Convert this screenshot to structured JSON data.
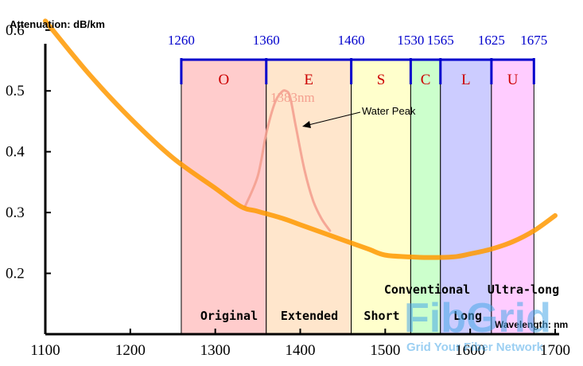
{
  "chart_data": {
    "type": "line",
    "ylabel": "Attenuation: dB/km",
    "xlabel": "Wavelength: nm",
    "xlim": [
      1100,
      1700
    ],
    "ylim": [
      0.1,
      0.62
    ],
    "x_ticks": [
      1100,
      1200,
      1300,
      1400,
      1500,
      1600,
      1700
    ],
    "y_ticks": [
      0.2,
      0.3,
      0.4,
      0.5,
      0.6
    ],
    "y_tick_labels": [
      "0.2",
      "0.3",
      "0.4",
      "0.5",
      "0.6"
    ],
    "series": [
      {
        "color": "#ff9900",
        "x": [
          1100,
          1150,
          1200,
          1250,
          1300,
          1330,
          1350,
          1380,
          1400,
          1450,
          1480,
          1500,
          1530,
          1550,
          1580,
          1600,
          1625,
          1650,
          1675,
          1700
        ],
        "y": [
          0.615,
          0.53,
          0.455,
          0.39,
          0.34,
          0.31,
          0.302,
          0.29,
          0.28,
          0.255,
          0.24,
          0.23,
          0.227,
          0.226,
          0.227,
          0.232,
          0.24,
          0.252,
          0.27,
          0.295
        ]
      }
    ],
    "water_peak": {
      "color": "#f4a090",
      "x": [
        1335,
        1350,
        1360,
        1370,
        1378,
        1383,
        1388,
        1395,
        1405,
        1415,
        1425,
        1435
      ],
      "y": [
        0.31,
        0.36,
        0.43,
        0.48,
        0.498,
        0.5,
        0.49,
        0.44,
        0.37,
        0.32,
        0.29,
        0.27
      ]
    },
    "bands": [
      {
        "letter": "O",
        "name": "Original",
        "start": 1260,
        "end": 1360,
        "color": "#ffcccc",
        "letter_color": "#cc0000"
      },
      {
        "letter": "E",
        "name": "Extended",
        "start": 1360,
        "end": 1460,
        "color": "#ffe6cc",
        "letter_color": "#cc0000"
      },
      {
        "letter": "S",
        "name": "Short",
        "start": 1460,
        "end": 1530,
        "color": "#ffffcc",
        "letter_color": "#cc0000"
      },
      {
        "letter": "C",
        "name": "Conventional",
        "start": 1530,
        "end": 1565,
        "color": "#ccffcc",
        "letter_color": "#cc0000"
      },
      {
        "letter": "L",
        "name": "Long",
        "start": 1565,
        "end": 1625,
        "color": "#ccccff",
        "letter_color": "#cc0000"
      },
      {
        "letter": "U",
        "name": "Ultra-long",
        "start": 1625,
        "end": 1675,
        "color": "#ffccff",
        "letter_color": "#cc0000"
      }
    ],
    "boundary_labels": [
      "1260",
      "1360",
      "1460",
      "1530",
      "1565",
      "1625",
      "1675"
    ],
    "boundary_values": [
      1260,
      1360,
      1460,
      1530,
      1565,
      1625,
      1675
    ],
    "annotations": {
      "peak_label": "1383nm",
      "peak_wavelength": 1383,
      "water_peak_label": "Water Peak"
    },
    "watermark": {
      "text": "FibGrid",
      "tagline": "Grid Your Fiber Network"
    },
    "colors": {
      "axis": "#000000",
      "boundary_text": "#0000cc",
      "boundary_bar": "#0000cc"
    }
  }
}
